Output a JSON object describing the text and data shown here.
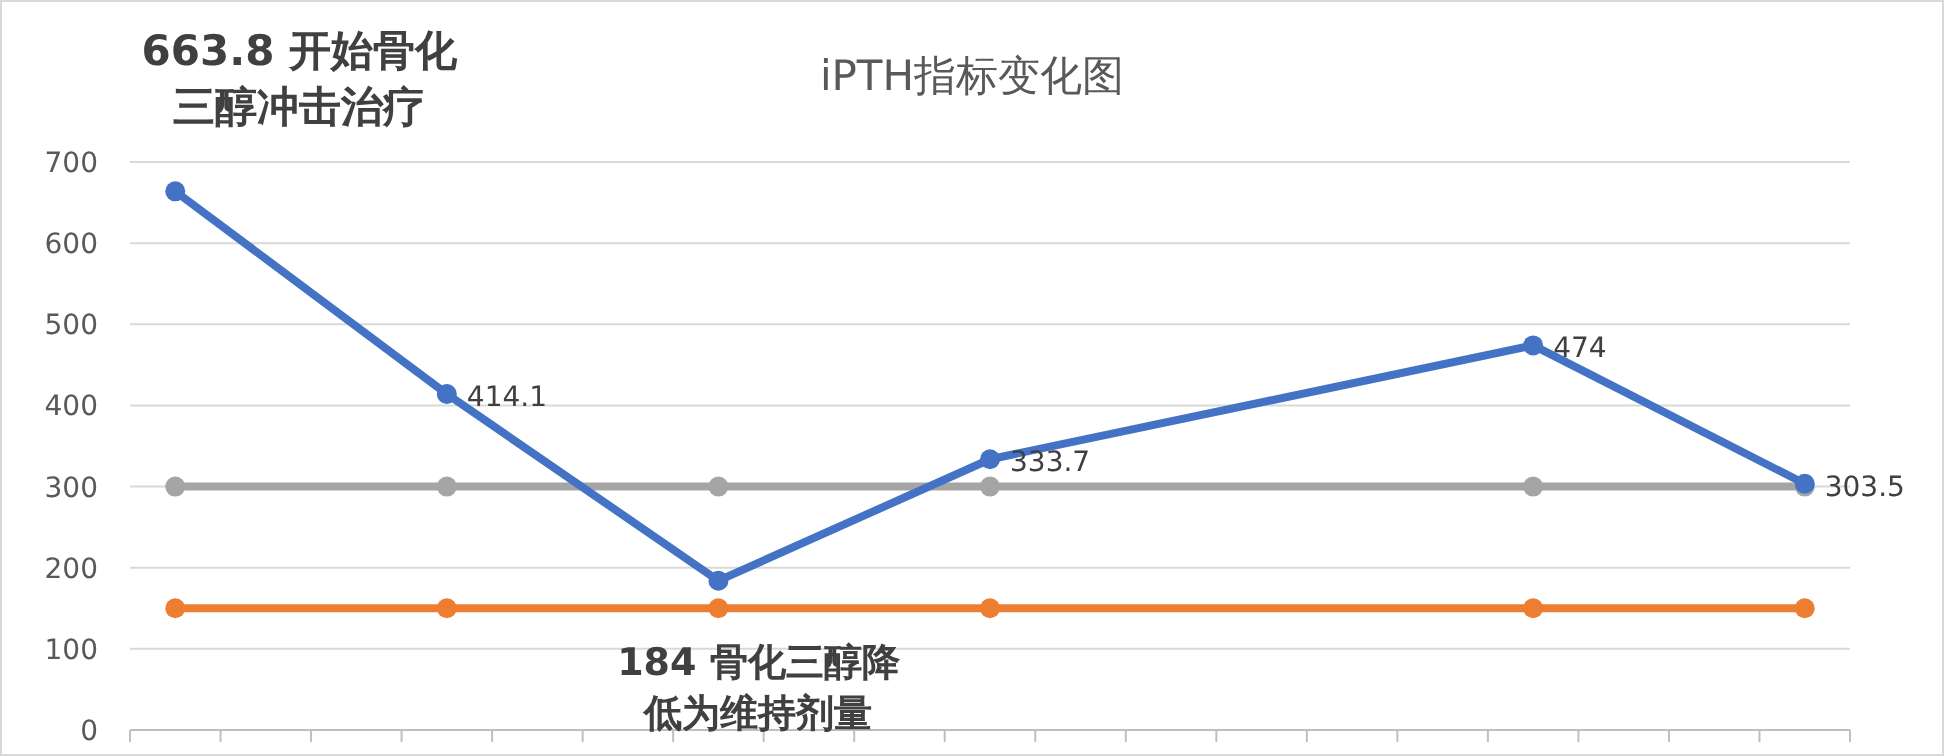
{
  "chart_data": {
    "type": "line",
    "title": "iPTH指标变化图",
    "categories": [
      null,
      null,
      null,
      null,
      null,
      null,
      null,
      null,
      null,
      null,
      null,
      null,
      null,
      null,
      null,
      null,
      null,
      null,
      null
    ],
    "series": [
      {
        "color": "#4472c4",
        "values": [
          663.8,
          null,
          null,
          414.1,
          null,
          null,
          184,
          null,
          null,
          333.7,
          null,
          null,
          null,
          null,
          null,
          474,
          null,
          null,
          303.5
        ],
        "value_labels": [
          "663.8 开始骨化三醇冲击治疗",
          null,
          null,
          "414.1",
          null,
          null,
          "184  骨化三醇降低为维持剂量",
          null,
          null,
          "333.7",
          null,
          null,
          null,
          null,
          null,
          "474",
          null,
          null,
          "303.5"
        ]
      },
      {
        "color": "#a5a5a5",
        "values": [
          300,
          null,
          null,
          300,
          null,
          null,
          300,
          null,
          null,
          300,
          null,
          null,
          null,
          null,
          null,
          300,
          null,
          null,
          300
        ]
      },
      {
        "color": "#ed7d31",
        "values": [
          150,
          null,
          null,
          150,
          null,
          null,
          150,
          null,
          null,
          150,
          null,
          null,
          null,
          null,
          null,
          150,
          null,
          null,
          150
        ]
      }
    ],
    "ylim": [
      0,
      700
    ],
    "yticks": [
      0,
      100,
      200,
      300,
      400,
      500,
      600,
      700
    ],
    "grid": "y",
    "marker": "circle",
    "line_style": "solid"
  }
}
